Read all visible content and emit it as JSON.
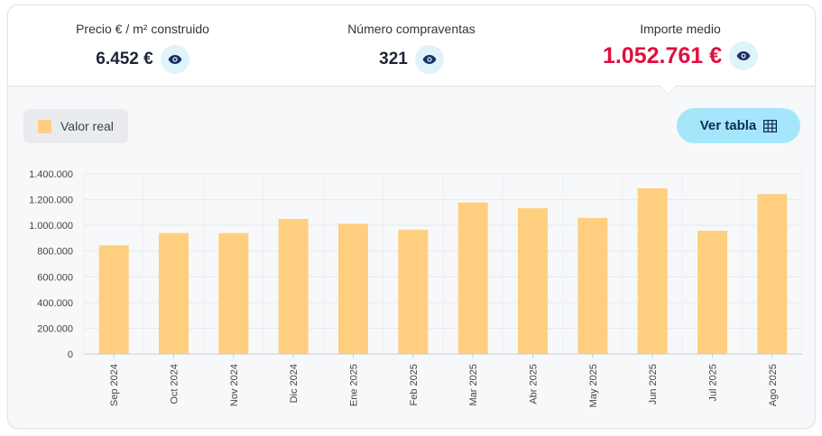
{
  "stats": [
    {
      "label": "Precio € / m² construido",
      "value": "6.452 €",
      "icon": "eye-icon"
    },
    {
      "label": "Número compraventas",
      "value": "321",
      "icon": "eye-icon"
    },
    {
      "label": "Importe medio",
      "value": "1.052.761 €",
      "icon": "eye-icon"
    }
  ],
  "legend": {
    "label": "Valor real",
    "color": "#ffcf7f"
  },
  "table_button": {
    "label": "Ver tabla",
    "icon": "table-grid-icon"
  },
  "colors": {
    "accent": "#e0103f",
    "bar": "#ffcf7f",
    "button": "#a6e6fb"
  },
  "chart_data": {
    "type": "bar",
    "categories": [
      "Sep 2024",
      "Oct 2024",
      "Nov 2024",
      "Dic 2024",
      "Ene 2025",
      "Feb 2025",
      "Mar 2025",
      "Abr 2025",
      "May 2025",
      "Jun 2025",
      "Jul 2025",
      "Ago 2025"
    ],
    "series": [
      {
        "name": "Valor real",
        "values": [
          845000,
          940000,
          940000,
          1050000,
          1012000,
          965000,
          1178000,
          1133000,
          1058000,
          1287000,
          958000,
          1243000
        ]
      }
    ],
    "yticks": [
      "0",
      "200.000",
      "400.000",
      "600.000",
      "800.000",
      "1.000.000",
      "1.200.000",
      "1.400.000"
    ],
    "ylim": [
      0,
      1400000
    ],
    "title": "",
    "xlabel": "",
    "ylabel": "",
    "grid": true,
    "legend_position": "top-left"
  }
}
